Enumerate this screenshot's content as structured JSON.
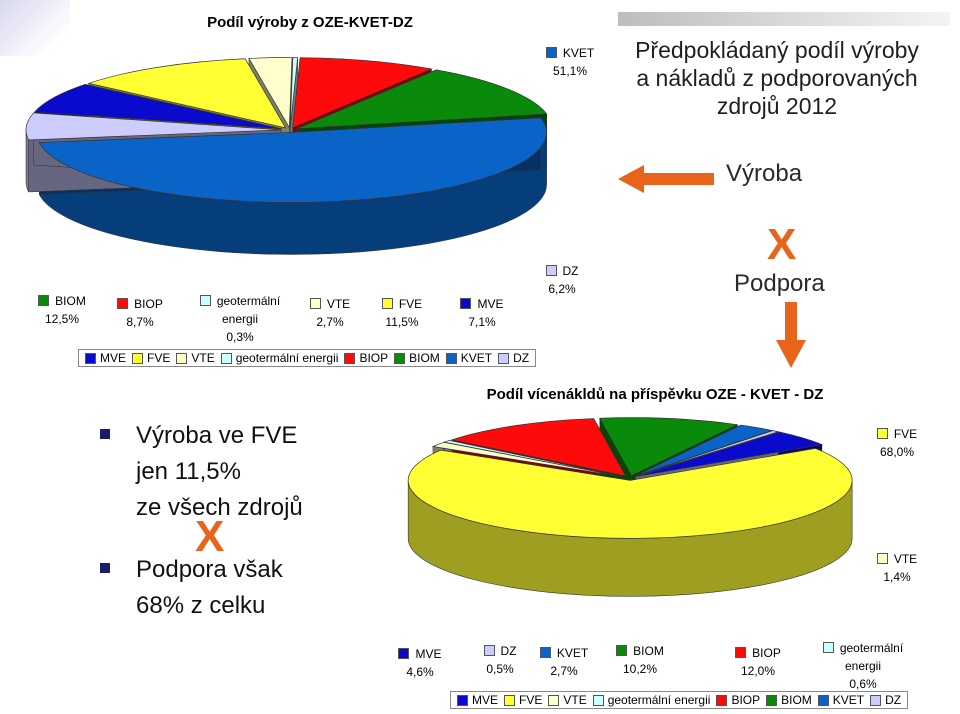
{
  "slide": {
    "title_lines": [
      "Předpokládaný podíl výroby",
      "a nákladů z podporovaných",
      "zdrojů 2012"
    ],
    "vyroba_label": "Výroba",
    "x_mark": "X",
    "podpora_label": "Podpora",
    "bullets": [
      {
        "lines": [
          "Výroba ve FVE",
          "jen 11,5%",
          "ze všech zdrojů"
        ]
      },
      {
        "lines": [
          "Podpora však",
          "68% z celku"
        ]
      }
    ],
    "colors": {
      "accent_orange": "#e8641b",
      "bullet": "#1c1c6e"
    }
  },
  "chart_data": [
    {
      "type": "pie",
      "style": "3d-exploded",
      "title": "Podíl výroby z OZE-KVET-DZ",
      "categories": [
        "MVE",
        "FVE",
        "VTE",
        "geotermální energii",
        "BIOP",
        "BIOM",
        "KVET",
        "DZ"
      ],
      "values": [
        7.1,
        11.5,
        2.7,
        0.3,
        8.7,
        12.5,
        51.1,
        6.2
      ],
      "value_labels": [
        "7,1%",
        "11,5%",
        "2,7%",
        "0,3%",
        "8,7%",
        "12,5%",
        "51,1%",
        "6,2%"
      ],
      "label_names": [
        "MVE",
        "FVE",
        "VTE",
        "geotermální energii",
        "BIOP",
        "BIOM",
        "KVET",
        "DZ"
      ],
      "colors": [
        "#0a0acc",
        "#ffff33",
        "#ffffcc",
        "#ccffff",
        "#ff0a0a",
        "#0a8a0a",
        "#0a64c8",
        "#ccccff"
      ],
      "legend": "bottom"
    },
    {
      "type": "pie",
      "style": "3d-exploded",
      "title": "Podíl vícenákldů na příspěvku OZE - KVET - DZ",
      "categories": [
        "MVE",
        "FVE",
        "VTE",
        "geotermální energii",
        "BIOP",
        "BIOM",
        "KVET",
        "DZ"
      ],
      "values": [
        4.6,
        68.0,
        1.4,
        0.6,
        12.0,
        10.2,
        2.7,
        0.5
      ],
      "value_labels": [
        "4,6%",
        "68,0%",
        "1,4%",
        "0,6%",
        "12,0%",
        "10,2%",
        "2,7%",
        "0,5%"
      ],
      "label_names": [
        "MVE",
        "FVE",
        "VTE",
        "geotermální energii",
        "BIOP",
        "BIOM",
        "KVET",
        "DZ"
      ],
      "colors": [
        "#0a0acc",
        "#ffff33",
        "#ffffcc",
        "#ccffff",
        "#ff0a0a",
        "#0a8a0a",
        "#0a64c8",
        "#ccccff"
      ],
      "legend": "bottom"
    }
  ]
}
